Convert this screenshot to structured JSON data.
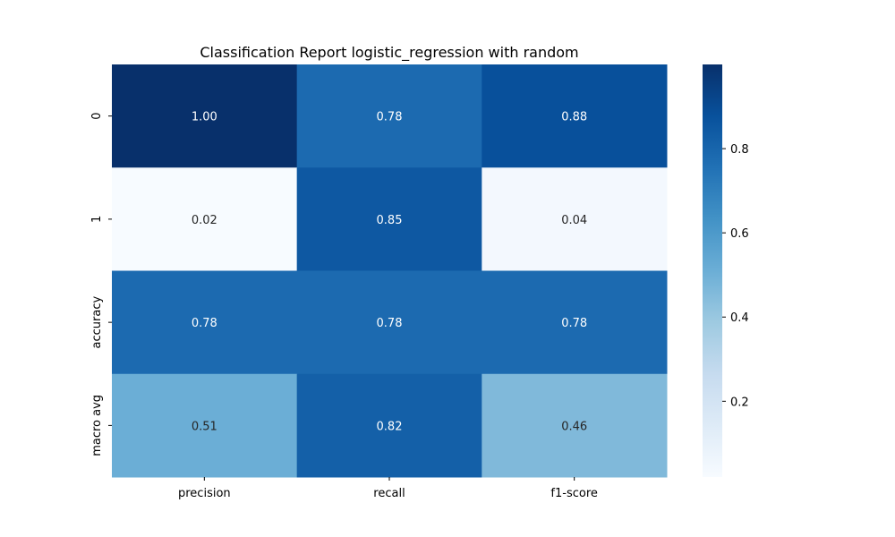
{
  "chart_data": {
    "type": "heatmap",
    "title": "Classification Report logistic_regression with random",
    "xlabel": "",
    "ylabel": "",
    "columns": [
      "precision",
      "recall",
      "f1-score"
    ],
    "rows": [
      "0",
      "1",
      "accuracy",
      "macro avg"
    ],
    "values": [
      [
        1.0,
        0.78,
        0.88
      ],
      [
        0.02,
        0.85,
        0.04
      ],
      [
        0.78,
        0.78,
        0.78
      ],
      [
        0.51,
        0.82,
        0.46
      ]
    ],
    "annotations": [
      [
        "1.00",
        "0.78",
        "0.88"
      ],
      [
        "0.02",
        "0.85",
        "0.04"
      ],
      [
        "0.78",
        "0.78",
        "0.78"
      ],
      [
        "0.51",
        "0.82",
        "0.46"
      ]
    ],
    "colormap": "Blues",
    "colorbar": {
      "range": [
        0.02,
        1.0
      ],
      "ticks": [
        "0.2",
        "0.4",
        "0.6",
        "0.8"
      ]
    }
  }
}
